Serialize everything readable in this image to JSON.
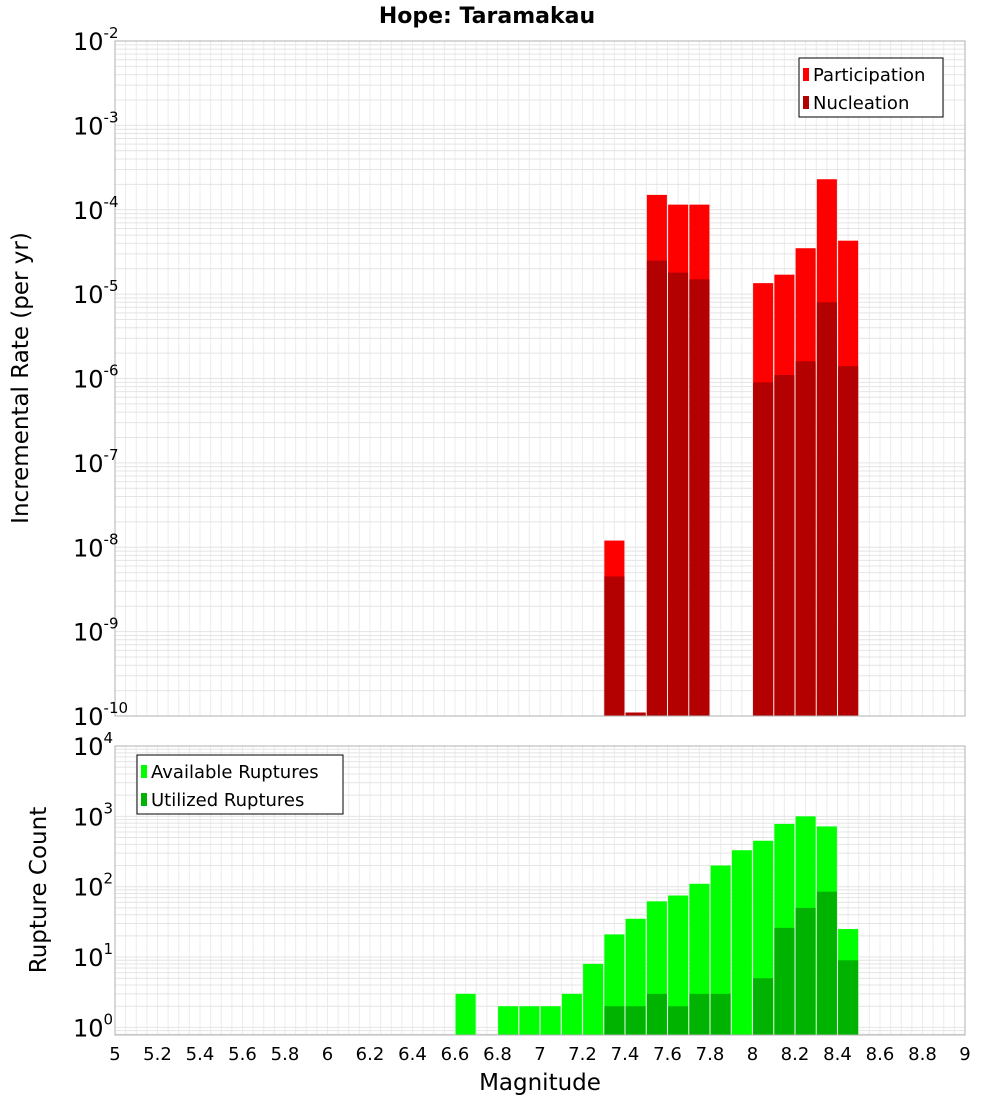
{
  "chart_data": [
    {
      "type": "bar",
      "title": "Hope: Taramakau",
      "ylabel": "Incremental Rate (per yr)",
      "xlim": [
        5,
        9
      ],
      "ylim": [
        1e-10,
        0.01
      ],
      "yscale": "log",
      "grid": true,
      "legend_placement": "top-right",
      "y_ticks": [
        {
          "base": "10",
          "exp": "-10"
        },
        {
          "base": "10",
          "exp": "-9"
        },
        {
          "base": "10",
          "exp": "-8"
        },
        {
          "base": "10",
          "exp": "-7"
        },
        {
          "base": "10",
          "exp": "-6"
        },
        {
          "base": "10",
          "exp": "-5"
        },
        {
          "base": "10",
          "exp": "-4"
        },
        {
          "base": "10",
          "exp": "-3"
        },
        {
          "base": "10",
          "exp": "-2"
        }
      ],
      "series": [
        {
          "name": "Participation",
          "color": "#ff0000",
          "x": [
            7.35,
            7.45,
            7.55,
            7.65,
            7.75,
            8.05,
            8.15,
            8.25,
            8.35,
            8.45
          ],
          "values": [
            1.2e-08,
            1.1e-10,
            0.00015,
            0.000115,
            0.000115,
            1.35e-05,
            1.7e-05,
            3.5e-05,
            0.00023,
            4.3e-05
          ]
        },
        {
          "name": "Nucleation",
          "color": "#b30000",
          "x": [
            7.35,
            7.45,
            7.55,
            7.65,
            7.75,
            8.05,
            8.15,
            8.25,
            8.35,
            8.45
          ],
          "values": [
            4.5e-09,
            1.1e-10,
            2.5e-05,
            1.8e-05,
            1.5e-05,
            9e-07,
            1.1e-06,
            1.6e-06,
            8e-06,
            1.4e-06
          ]
        }
      ]
    },
    {
      "type": "bar",
      "xlabel": "Magnitude",
      "ylabel": "Rupture Count",
      "xlim": [
        5,
        9
      ],
      "ylim": [
        0.78,
        10000.0
      ],
      "yscale": "log",
      "grid": true,
      "legend_placement": "top-left",
      "x_ticks": [
        "5",
        "5.2",
        "5.4",
        "5.6",
        "5.8",
        "6",
        "6.2",
        "6.4",
        "6.6",
        "6.8",
        "7",
        "7.2",
        "7.4",
        "7.6",
        "7.8",
        "8",
        "8.2",
        "8.4",
        "8.6",
        "8.8",
        "9"
      ],
      "y_ticks": [
        {
          "base": "10",
          "exp": "0"
        },
        {
          "base": "10",
          "exp": "1"
        },
        {
          "base": "10",
          "exp": "2"
        },
        {
          "base": "10",
          "exp": "3"
        },
        {
          "base": "10",
          "exp": "4"
        }
      ],
      "series": [
        {
          "name": "Available Ruptures",
          "color": "#00ff00",
          "x": [
            6.65,
            6.85,
            6.95,
            7.05,
            7.15,
            7.25,
            7.35,
            7.45,
            7.55,
            7.65,
            7.75,
            7.85,
            7.95,
            8.05,
            8.15,
            8.25,
            8.35,
            8.45
          ],
          "values": [
            3,
            2,
            2,
            2,
            3,
            8,
            21,
            35,
            62,
            75,
            110,
            200,
            330,
            450,
            780,
            1000,
            720,
            25
          ]
        },
        {
          "name": "Utilized Ruptures",
          "color": "#00b300",
          "x": [
            7.35,
            7.45,
            7.55,
            7.65,
            7.75,
            7.85,
            8.05,
            8.15,
            8.25,
            8.35,
            8.45
          ],
          "values": [
            2,
            2,
            3,
            2,
            3,
            3,
            5,
            26,
            50,
            85,
            9
          ]
        }
      ]
    }
  ]
}
